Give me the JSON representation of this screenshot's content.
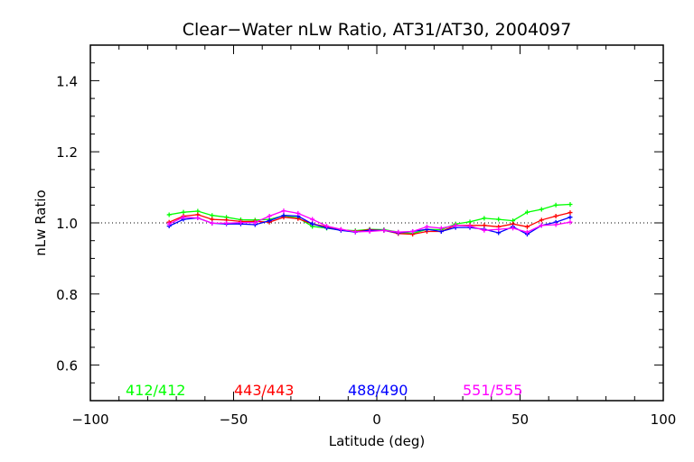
{
  "chart_data": {
    "type": "line",
    "title": "Clear−Water nLw Ratio, AT31/AT30, 2004097",
    "xlabel": "Latitude (deg)",
    "ylabel": "nLw Ratio",
    "xlim": [
      -100,
      100
    ],
    "ylim": [
      0.5,
      1.5
    ],
    "xticks": [
      -100,
      -50,
      0,
      50,
      100
    ],
    "xtick_labels": [
      "−100",
      "−50",
      "0",
      "50",
      "100"
    ],
    "yticks": [
      0.6,
      0.8,
      1.0,
      1.2,
      1.4
    ],
    "ytick_labels": [
      "0.6",
      "0.8",
      "1.0",
      "1.2",
      "1.4"
    ],
    "reference_line": 1.0,
    "legend_placement": "bottom-inside",
    "x": [
      -72.5,
      -67.5,
      -62.5,
      -57.5,
      -52.5,
      -47.5,
      -42.5,
      -37.5,
      -32.5,
      -27.5,
      -22.5,
      -17.5,
      -12.5,
      -7.5,
      -2.5,
      2.5,
      7.5,
      12.5,
      17.5,
      22.5,
      27.5,
      32.5,
      37.5,
      42.5,
      47.5,
      52.5,
      57.5,
      62.5,
      67.5
    ],
    "series": [
      {
        "name": "412/412",
        "color": "#00ff00",
        "values": [
          1.023,
          1.03,
          1.033,
          1.021,
          1.016,
          1.009,
          1.008,
          1.01,
          1.02,
          1.014,
          0.99,
          0.985,
          0.98,
          0.978,
          0.982,
          0.981,
          0.974,
          0.97,
          0.982,
          0.981,
          0.997,
          1.003,
          1.013,
          1.01,
          1.006,
          1.03,
          1.038,
          1.05,
          1.052
        ]
      },
      {
        "name": "443/443",
        "color": "#ff0000",
        "values": [
          1.002,
          1.019,
          1.023,
          1.01,
          1.008,
          1.004,
          1.004,
          1.002,
          1.016,
          1.012,
          0.997,
          0.989,
          0.981,
          0.976,
          0.981,
          0.979,
          0.97,
          0.968,
          0.976,
          0.976,
          0.993,
          0.993,
          0.993,
          0.989,
          0.997,
          0.989,
          1.008,
          1.019,
          1.029
        ]
      },
      {
        "name": "488/490",
        "color": "#0000ff",
        "values": [
          0.991,
          1.01,
          1.014,
          0.999,
          0.997,
          0.997,
          0.995,
          1.006,
          1.021,
          1.019,
          0.997,
          0.986,
          0.979,
          0.974,
          0.979,
          0.979,
          0.972,
          0.976,
          0.982,
          0.976,
          0.987,
          0.987,
          0.982,
          0.972,
          0.989,
          0.968,
          0.993,
          1.002,
          1.016
        ]
      },
      {
        "name": "551/555",
        "color": "#ff00ff",
        "values": [
          0.997,
          1.016,
          1.014,
          0.999,
          0.999,
          1.001,
          1.001,
          1.019,
          1.034,
          1.027,
          1.01,
          0.991,
          0.982,
          0.975,
          0.976,
          0.979,
          0.974,
          0.976,
          0.989,
          0.985,
          0.993,
          0.991,
          0.979,
          0.982,
          0.985,
          0.974,
          0.993,
          0.995,
          1.002
        ]
      }
    ]
  }
}
